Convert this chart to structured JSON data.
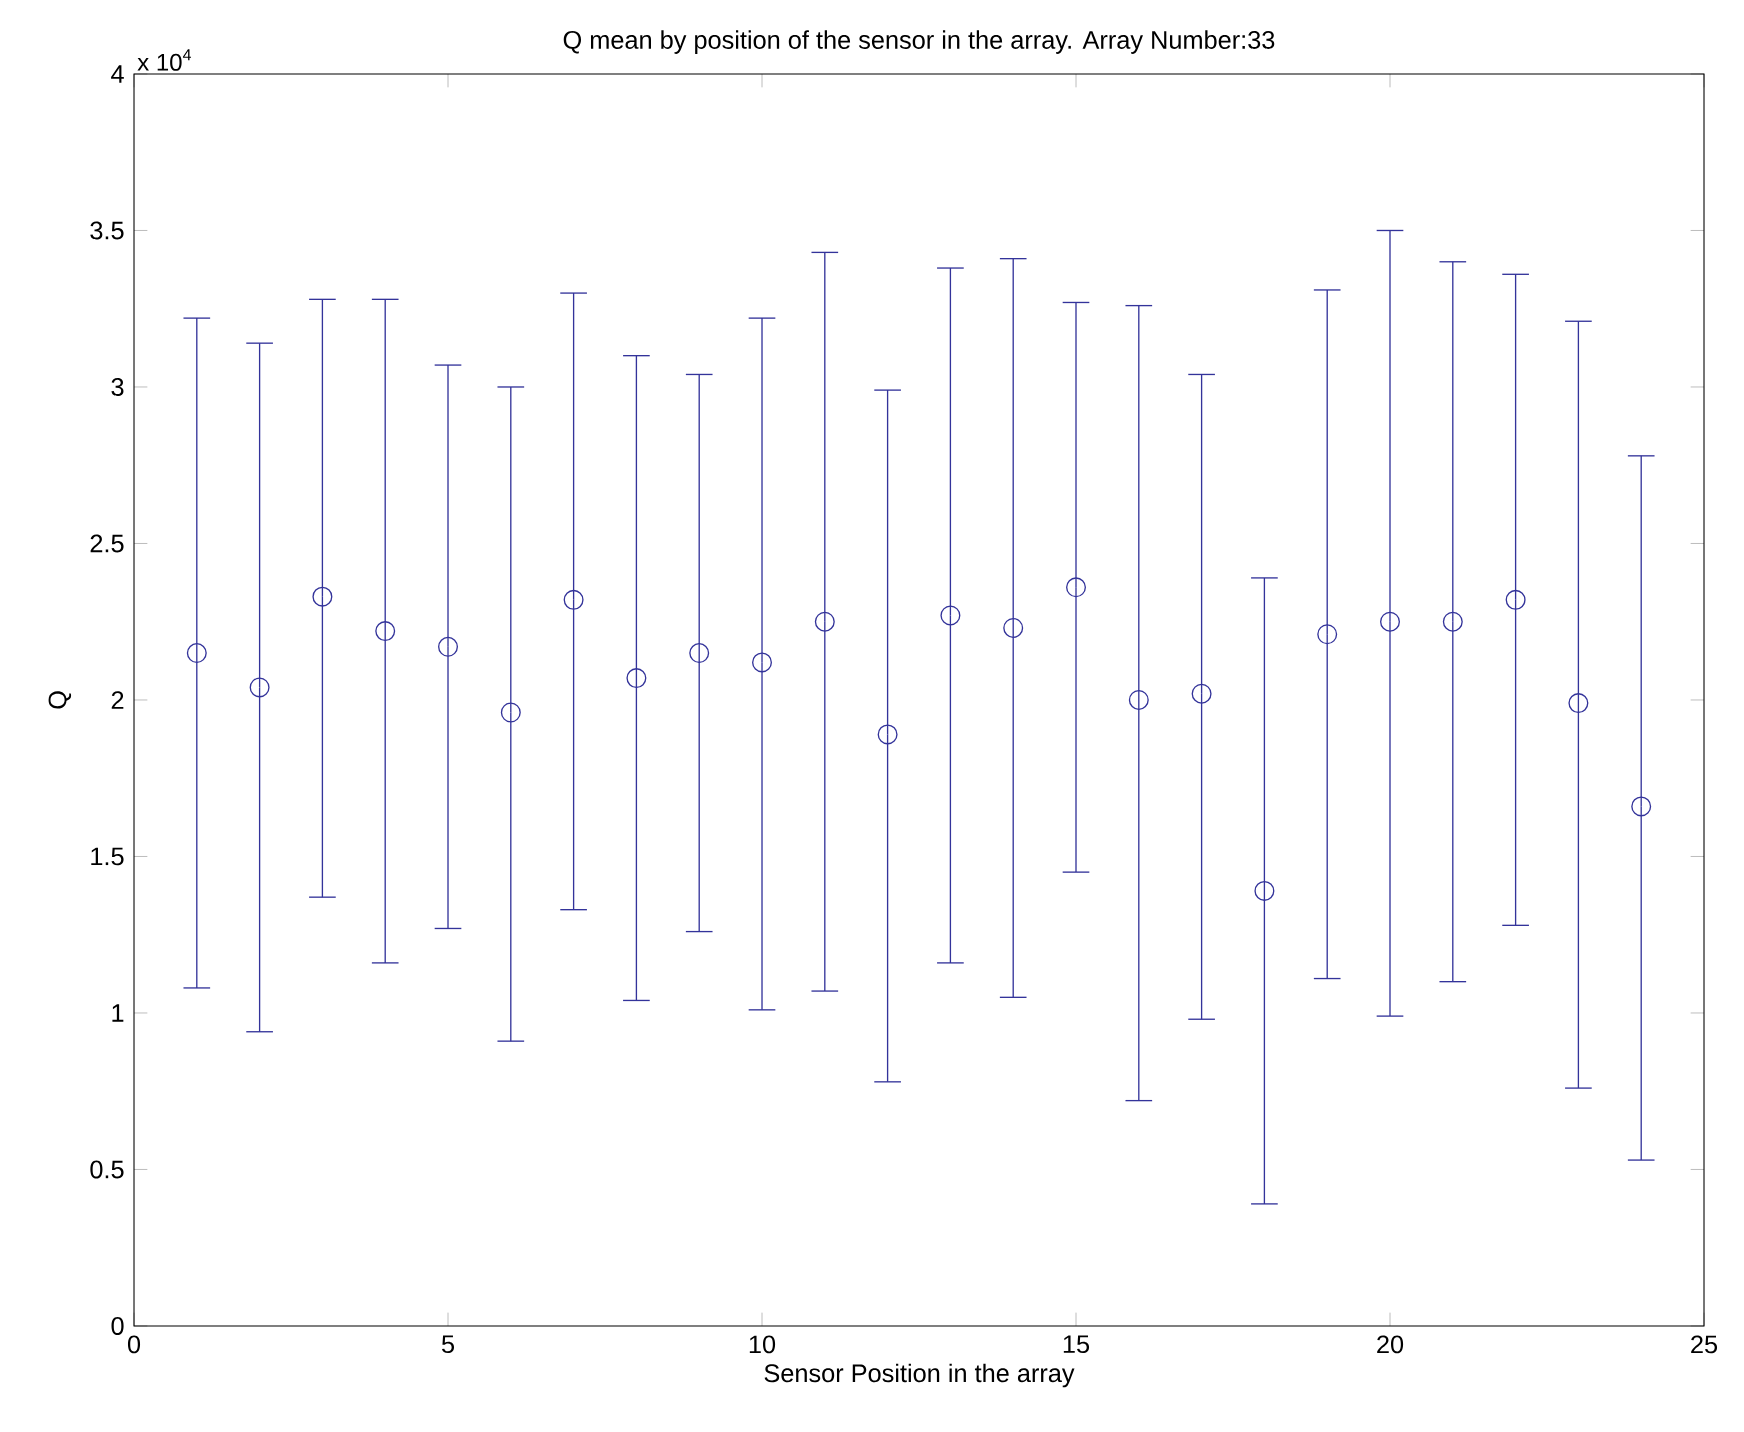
{
  "chart_data": {
    "type": "scatter",
    "title": "Q mean by position of the sensor in the array. Array Number:33",
    "xlabel": "Sensor Position in the array",
    "ylabel": "Q",
    "annotations": [
      "x 10$^{4}$"
    ],
    "x": [
      1,
      2,
      3,
      4,
      5,
      6,
      7,
      8,
      9,
      10,
      11,
      12,
      13,
      14,
      15,
      16,
      17,
      18,
      19,
      20,
      21,
      22,
      23,
      24
    ],
    "values": [
      2.15,
      2.04,
      2.33,
      2.22,
      2.17,
      1.96,
      2.32,
      2.07,
      2.15,
      2.12,
      2.25,
      1.89,
      2.27,
      2.23,
      2.36,
      2.0,
      2.02,
      1.39,
      2.21,
      2.25,
      2.25,
      2.32,
      1.99,
      1.66
    ],
    "errors": [
      [
        1.08,
        3.22
      ],
      [
        0.94,
        3.14
      ],
      [
        1.37,
        3.28
      ],
      [
        1.16,
        3.28
      ],
      [
        1.27,
        3.07
      ],
      [
        0.91,
        3.0
      ],
      [
        1.33,
        3.3
      ],
      [
        1.04,
        3.1
      ],
      [
        1.26,
        3.04
      ],
      [
        1.01,
        3.22
      ],
      [
        1.07,
        3.43
      ],
      [
        0.78,
        2.99
      ],
      [
        1.16,
        3.38
      ],
      [
        1.05,
        3.41
      ],
      [
        1.45,
        3.27
      ],
      [
        0.72,
        3.26
      ],
      [
        0.98,
        3.04
      ],
      [
        0.39,
        2.39
      ],
      [
        1.11,
        3.31
      ],
      [
        0.99,
        3.5
      ],
      [
        1.1,
        3.4
      ],
      [
        1.28,
        3.36
      ],
      [
        0.76,
        3.21
      ],
      [
        0.53,
        2.78
      ]
    ],
    "color": "#33339a",
    "marker": "circle",
    "xlim": [
      0,
      25
    ],
    "xticks": [
      0,
      5,
      10,
      15,
      20,
      25
    ],
    "ylim": [
      0,
      4
    ],
    "yticks": [
      0,
      0.5,
      1,
      1.5,
      2,
      2.5,
      3,
      3.5,
      4
    ]
  }
}
